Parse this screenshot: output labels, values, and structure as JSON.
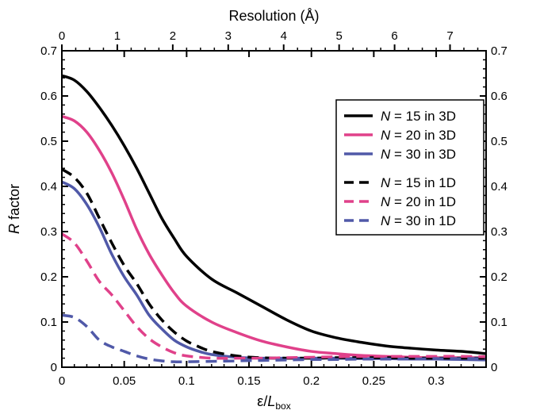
{
  "chart_data": {
    "type": "line",
    "xlabel": {
      "main": "ε/",
      "italic": "L",
      "sub": "box"
    },
    "ylabel": {
      "italic": "R",
      "main": " factor"
    },
    "x2label": "Resolution (Å)",
    "xlim": [
      0,
      0.34
    ],
    "ylim": [
      0,
      0.7
    ],
    "x2lim": [
      0,
      7.65
    ],
    "x_ticks": [
      "0",
      "0.05",
      "0.1",
      "0.15",
      "0.2",
      "0.25",
      "0.3"
    ],
    "x_tick_values": [
      0,
      0.05,
      0.1,
      0.15,
      0.2,
      0.25,
      0.3
    ],
    "y_ticks": [
      "0",
      "0.1",
      "0.2",
      "0.3",
      "0.4",
      "0.5",
      "0.6",
      "0.7"
    ],
    "y_tick_values": [
      0,
      0.1,
      0.2,
      0.3,
      0.4,
      0.5,
      0.6,
      0.7
    ],
    "x2_ticks": [
      "0",
      "1",
      "2",
      "3",
      "4",
      "5",
      "6",
      "7"
    ],
    "x2_tick_values": [
      0,
      1,
      2,
      3,
      4,
      5,
      6,
      7
    ],
    "grid": false,
    "legend_position": "top-right",
    "series": [
      {
        "name": "N = 15 in 3D",
        "name_italic": "N",
        "name_rest": " = 15 in 3D",
        "color": "#000000",
        "style": "solid",
        "x": [
          0,
          0.01,
          0.02,
          0.03,
          0.04,
          0.05,
          0.06,
          0.07,
          0.08,
          0.09,
          0.1,
          0.12,
          0.14,
          0.16,
          0.18,
          0.2,
          0.22,
          0.24,
          0.26,
          0.28,
          0.3,
          0.32,
          0.34
        ],
        "y": [
          0.645,
          0.635,
          0.61,
          0.575,
          0.535,
          0.49,
          0.44,
          0.385,
          0.33,
          0.285,
          0.245,
          0.195,
          0.165,
          0.135,
          0.105,
          0.08,
          0.065,
          0.055,
          0.047,
          0.042,
          0.038,
          0.035,
          0.03
        ]
      },
      {
        "name": "N = 20 in 3D",
        "name_italic": "N",
        "name_rest": " = 20 in 3D",
        "color": "#e0418a",
        "style": "solid",
        "x": [
          0,
          0.01,
          0.02,
          0.03,
          0.04,
          0.05,
          0.06,
          0.07,
          0.08,
          0.09,
          0.1,
          0.12,
          0.14,
          0.16,
          0.18,
          0.2,
          0.22,
          0.24,
          0.26,
          0.28,
          0.3,
          0.32,
          0.34
        ],
        "y": [
          0.555,
          0.545,
          0.52,
          0.48,
          0.43,
          0.37,
          0.305,
          0.25,
          0.205,
          0.165,
          0.135,
          0.1,
          0.077,
          0.058,
          0.045,
          0.035,
          0.03,
          0.026,
          0.024,
          0.022,
          0.021,
          0.021,
          0.021
        ]
      },
      {
        "name": "N = 30 in 3D",
        "name_italic": "N",
        "name_rest": " = 30 in 3D",
        "color": "#5059a8",
        "style": "solid",
        "x": [
          0,
          0.01,
          0.02,
          0.03,
          0.04,
          0.05,
          0.06,
          0.07,
          0.08,
          0.09,
          0.1,
          0.11,
          0.12,
          0.14,
          0.16,
          0.18,
          0.2,
          0.22,
          0.24,
          0.26,
          0.28,
          0.3,
          0.32,
          0.34
        ],
        "y": [
          0.41,
          0.395,
          0.36,
          0.31,
          0.25,
          0.2,
          0.16,
          0.115,
          0.085,
          0.06,
          0.045,
          0.035,
          0.028,
          0.022,
          0.02,
          0.02,
          0.02,
          0.02,
          0.019,
          0.019,
          0.018,
          0.018,
          0.017,
          0.016
        ]
      },
      {
        "name": "N = 15 in 1D",
        "name_italic": "N",
        "name_rest": " = 15 in 1D",
        "color": "#000000",
        "style": "dashed",
        "x": [
          0,
          0.01,
          0.02,
          0.03,
          0.04,
          0.05,
          0.06,
          0.07,
          0.08,
          0.09,
          0.1,
          0.11,
          0.12,
          0.14,
          0.16,
          0.18,
          0.2,
          0.22,
          0.24,
          0.26,
          0.28,
          0.3,
          0.32,
          0.34
        ],
        "y": [
          0.438,
          0.42,
          0.385,
          0.33,
          0.275,
          0.225,
          0.185,
          0.14,
          0.105,
          0.078,
          0.058,
          0.045,
          0.035,
          0.025,
          0.021,
          0.02,
          0.02,
          0.021,
          0.021,
          0.021,
          0.02,
          0.02,
          0.02,
          0.02
        ]
      },
      {
        "name": "N = 20 in 1D",
        "name_italic": "N",
        "name_rest": " = 20 in 1D",
        "color": "#e0418a",
        "style": "dashed",
        "x": [
          0,
          0.01,
          0.02,
          0.03,
          0.04,
          0.05,
          0.06,
          0.07,
          0.08,
          0.09,
          0.1,
          0.12,
          0.14,
          0.16,
          0.18,
          0.2,
          0.22,
          0.24,
          0.26,
          0.28,
          0.3,
          0.32,
          0.34
        ],
        "y": [
          0.295,
          0.275,
          0.235,
          0.19,
          0.16,
          0.125,
          0.09,
          0.063,
          0.045,
          0.032,
          0.025,
          0.02,
          0.02,
          0.02,
          0.021,
          0.022,
          0.023,
          0.024,
          0.024,
          0.024,
          0.024,
          0.024,
          0.023
        ]
      },
      {
        "name": "N = 30 in 1D",
        "name_italic": "N",
        "name_rest": " = 30 in 1D",
        "color": "#5059a8",
        "style": "dashed",
        "x": [
          0,
          0.01,
          0.02,
          0.03,
          0.04,
          0.05,
          0.06,
          0.07,
          0.08,
          0.09,
          0.1,
          0.12,
          0.14,
          0.16,
          0.18,
          0.2,
          0.22,
          0.24,
          0.26,
          0.28,
          0.3,
          0.32,
          0.34
        ],
        "y": [
          0.115,
          0.11,
          0.09,
          0.06,
          0.045,
          0.035,
          0.025,
          0.018,
          0.014,
          0.012,
          0.012,
          0.013,
          0.014,
          0.015,
          0.016,
          0.017,
          0.017,
          0.018,
          0.018,
          0.018,
          0.019,
          0.019,
          0.019
        ]
      }
    ]
  }
}
